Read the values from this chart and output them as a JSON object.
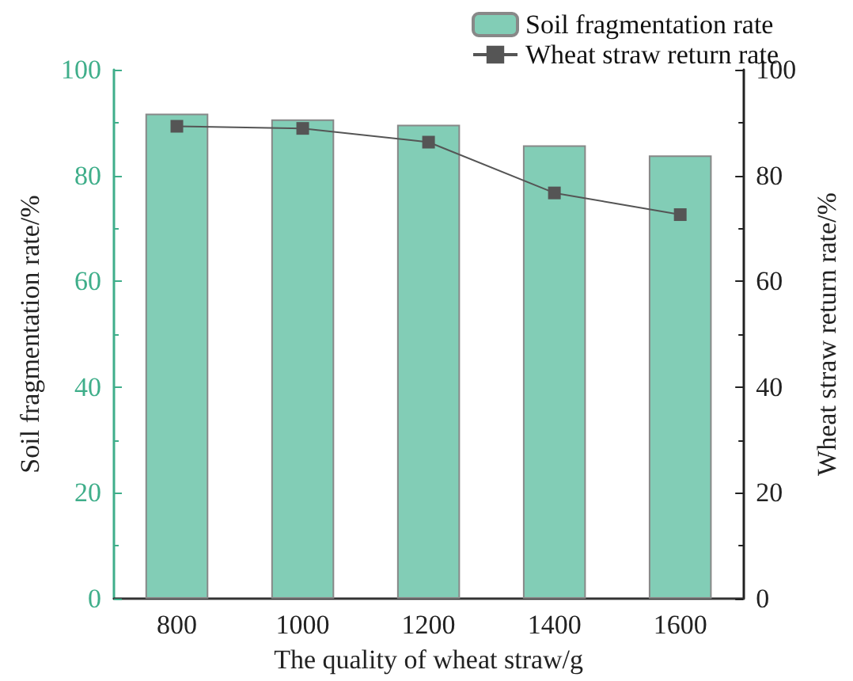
{
  "chart_data": {
    "type": "bar",
    "xlabel": "The quality of wheat straw/g",
    "ylabel": "Soil fragmentation rate/%",
    "y2label": "Wheat straw return rate/%",
    "categories": [
      "800",
      "1000",
      "1200",
      "1400",
      "1600"
    ],
    "series": [
      {
        "name": "Soil fragmentation rate",
        "color": "#82cdb6",
        "values": [
          91.7,
          90.6,
          89.6,
          85.7,
          83.8
        ]
      },
      {
        "name": "Wheat straw return rate",
        "type": "line",
        "axis": "y2",
        "color": "#555555",
        "values": [
          89.3,
          88.9,
          86.3,
          76.7,
          72.6
        ]
      }
    ],
    "ylim": [
      0,
      100
    ],
    "yticks": [
      0,
      20,
      40,
      60,
      80,
      100
    ],
    "y2lim": [
      0,
      100
    ],
    "y2ticks": [
      0,
      20,
      40,
      60,
      80,
      100
    ],
    "grid": false,
    "legend": "top right",
    "marker": "square",
    "line_style": "solid"
  }
}
